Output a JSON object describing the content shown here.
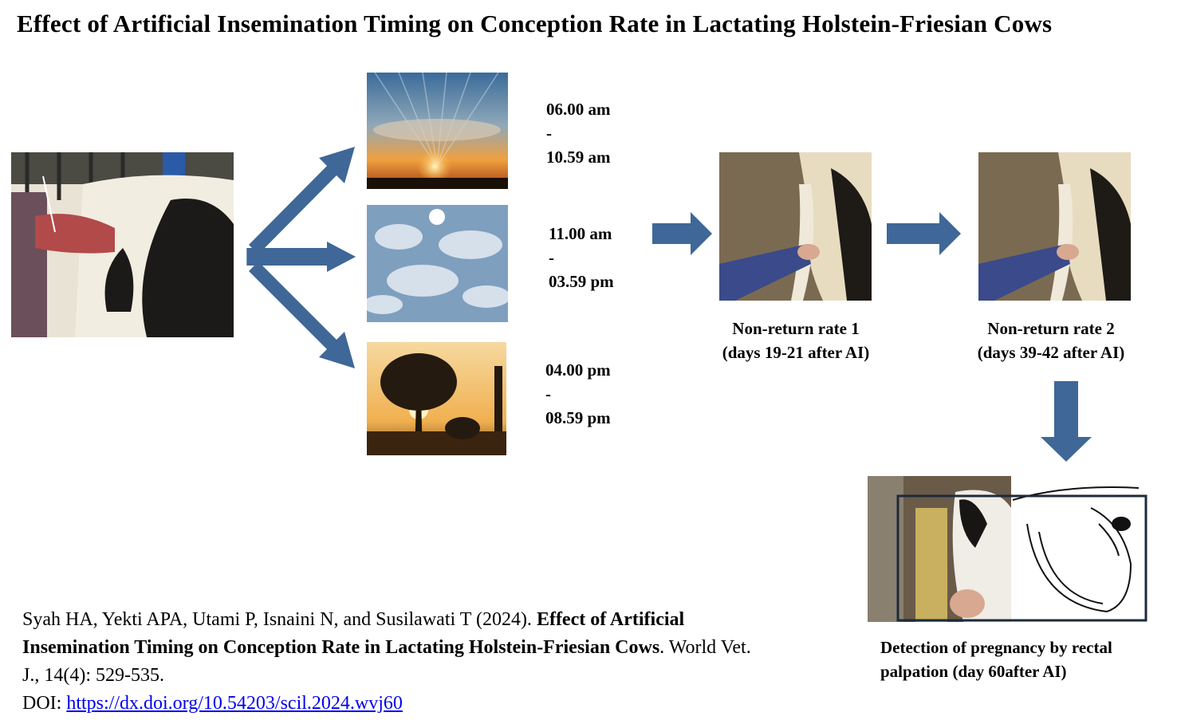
{
  "title": "Effect of Artificial Insemination Timing on Conception Rate in Lactating Holstein-Friesian  Cows",
  "colors": {
    "arrow": "#3f6797",
    "link": "#0000ee"
  },
  "time_slots": [
    {
      "start": "06.00 am",
      "sep": "-",
      "end": "10.59 am",
      "image": "sunrise-photo"
    },
    {
      "start": "11.00 am",
      "sep": "-",
      "end": "03.59 pm",
      "image": "midday-sky-photo"
    },
    {
      "start": "04.00 pm",
      "sep": "-",
      "end": "08.59 pm",
      "image": "sunset-tree-photo"
    }
  ],
  "stages": [
    {
      "line1": "Non-return rate 1",
      "line2": "(days 19-21 after AI)"
    },
    {
      "line1": "Non-return rate 2",
      "line2": "(days 39-42 after AI)"
    }
  ],
  "detection": {
    "line1": "Detection of pregnancy by rectal",
    "line2": "palpation (day 60after AI)"
  },
  "citation": {
    "authors": "Syah HA, Yekti APA, Utami P, Isnaini N, and Susilawati T (2024). ",
    "title": "Effect of Artificial Insemination Timing on Conception Rate in Lactating Holstein-Friesian Cows",
    "journal": ". World Vet. J., 14(4): 529-535.",
    "doi_label": "DOI: ",
    "doi_url": "https://dx.doi.org/10.54203/scil.2024.wvj60"
  }
}
